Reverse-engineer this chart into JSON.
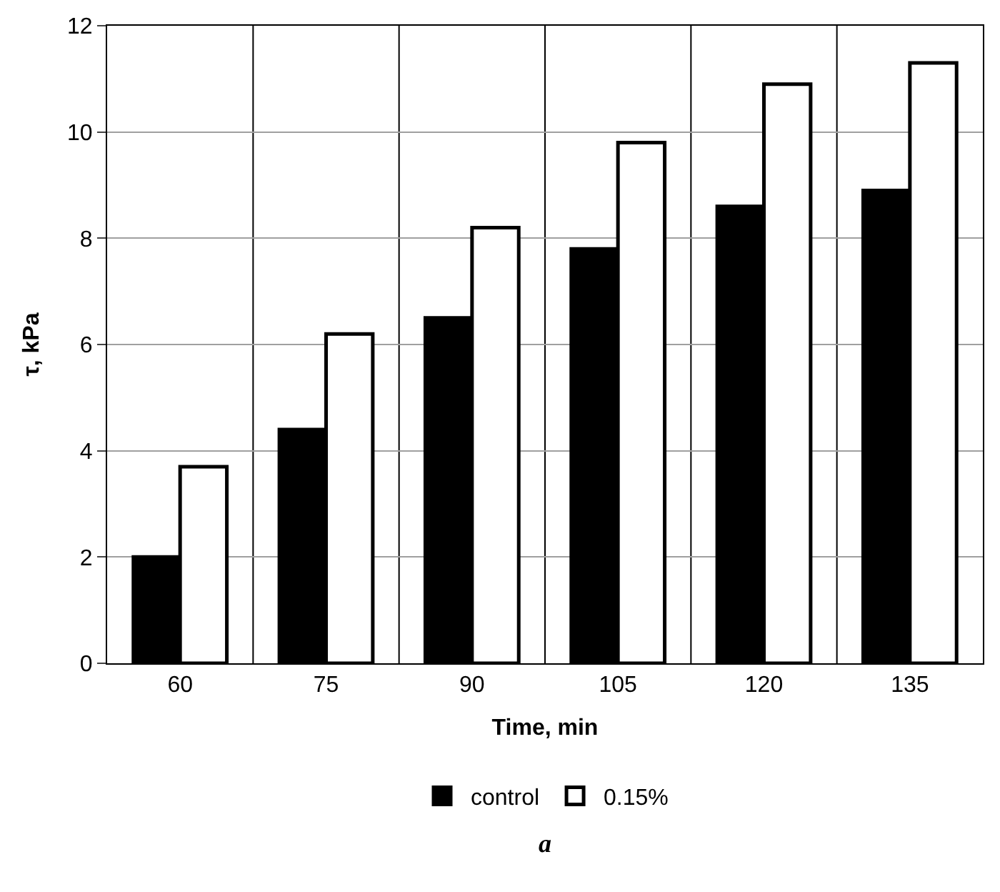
{
  "chart_data": {
    "type": "bar",
    "xlabel": "Time, min",
    "ylabel": "τ, kPa",
    "categories": [
      "60",
      "75",
      "90",
      "105",
      "120",
      "135"
    ],
    "series": [
      {
        "name": "control",
        "color": "#000000",
        "values": [
          2.0,
          4.4,
          6.5,
          7.8,
          8.6,
          8.9
        ]
      },
      {
        "name": "0.15%",
        "color": "#ffffff",
        "values": [
          3.7,
          6.2,
          8.2,
          9.8,
          10.9,
          11.3
        ]
      }
    ],
    "ylim": [
      0,
      12
    ],
    "yticks": [
      0,
      2,
      4,
      6,
      8,
      10,
      12
    ],
    "grid": true,
    "legend": "bottom",
    "annotations": [
      "a"
    ]
  }
}
